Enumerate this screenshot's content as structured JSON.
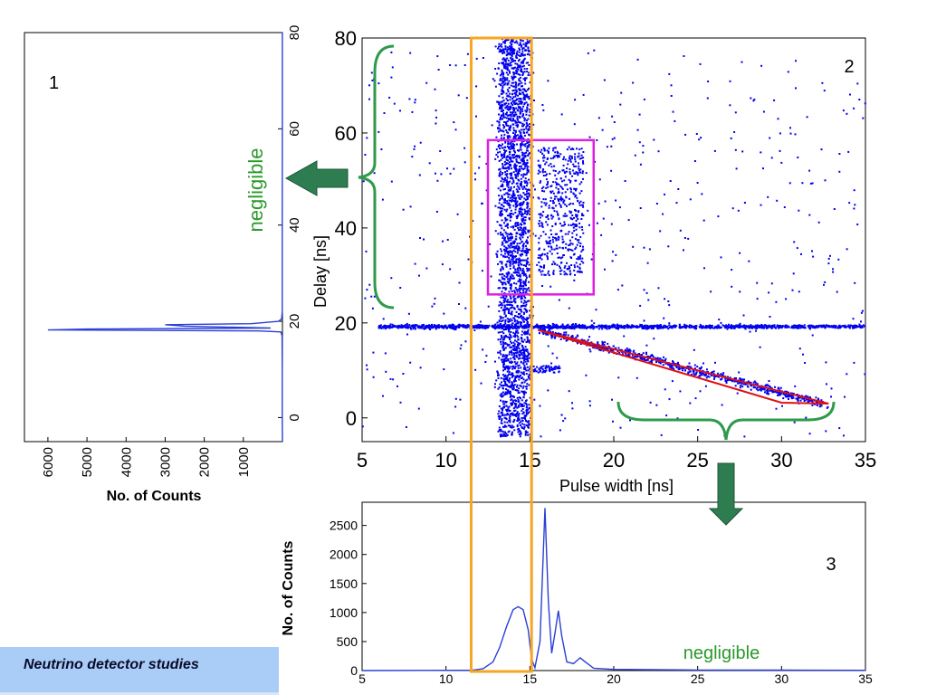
{
  "page": {
    "footer_title": "Neutrino detector studies",
    "colors": {
      "points": "#0000ee",
      "orange_box": "#f5a623",
      "magenta_box": "#e020e0",
      "red_band": "#e01010",
      "green_annotation": "#2e9a4a",
      "green_arrow": "#2e7d50",
      "negligible_text": "#2a9a2a"
    }
  },
  "chart_data": [
    {
      "id": "panel-1",
      "type": "line",
      "panel_label": "1",
      "orientation": "horizontal-histogram",
      "title": "",
      "xlabel": "No. of Counts",
      "ylabel": "",
      "x_reversed": true,
      "xlim": [
        0,
        6600
      ],
      "ylim": [
        -5,
        80
      ],
      "x_ticks": [
        "6000",
        "5000",
        "4000",
        "3000",
        "2000",
        "1000"
      ],
      "x_tick_values": [
        6000,
        5000,
        4000,
        3000,
        2000,
        1000
      ],
      "y_ticks": [
        "0",
        "20",
        "40",
        "60",
        "80"
      ],
      "y_tick_values": [
        0,
        20,
        40,
        60,
        80
      ],
      "series": [
        {
          "points": [
            [
              0,
              -5
            ],
            [
              5,
              0
            ],
            [
              5,
              10
            ],
            [
              10,
              17
            ],
            [
              40,
              17.8
            ],
            [
              600,
              18
            ],
            [
              6000,
              18.2
            ],
            [
              5000,
              18.4
            ],
            [
              300,
              18.6
            ],
            [
              2500,
              19
            ],
            [
              3000,
              19.3
            ],
            [
              800,
              19.5
            ],
            [
              100,
              20
            ],
            [
              20,
              20.5
            ],
            [
              5,
              22
            ],
            [
              5,
              40
            ],
            [
              3,
              60
            ],
            [
              3,
              80
            ]
          ]
        }
      ],
      "annotation": "negligible"
    },
    {
      "id": "panel-2",
      "type": "scatter",
      "panel_label": "2",
      "title": "",
      "xlabel": "Pulse width [ns]",
      "ylabel": "Delay [ns]",
      "xlim": [
        5,
        35
      ],
      "ylim": [
        -5,
        80
      ],
      "x_ticks": [
        "5",
        "10",
        "15",
        "20",
        "25",
        "30",
        "35"
      ],
      "x_tick_values": [
        5,
        10,
        15,
        20,
        25,
        30,
        35
      ],
      "y_ticks": [
        "0",
        "20",
        "40",
        "60",
        "80"
      ],
      "y_tick_values": [
        0,
        20,
        40,
        60,
        80
      ],
      "clusters": [
        {
          "name": "vertical band",
          "x_range": [
            13.2,
            15.0
          ],
          "y_range": [
            -4,
            80
          ],
          "approx_points": 2600
        },
        {
          "name": "horizontal band at delay 19 ns",
          "x_range": [
            6,
            35
          ],
          "y_center": 19.2,
          "y_spread": 0.4,
          "approx_points": 1400
        },
        {
          "name": "cluster near 16–18 ns",
          "x_range": [
            15.5,
            18.2
          ],
          "y_range": [
            30,
            57
          ],
          "approx_points": 500
        },
        {
          "name": "diagonal band",
          "from": [
            15.5,
            18.5
          ],
          "to": [
            32.5,
            3.0
          ],
          "approx_points": 700
        },
        {
          "name": "blob at delay 10 ns",
          "x_range": [
            15.2,
            16.8
          ],
          "y_range": [
            9.5,
            11
          ],
          "approx_points": 60
        },
        {
          "name": "sparse background",
          "x_range": [
            5,
            35
          ],
          "y_range": [
            -4,
            78
          ],
          "approx_points": 520
        }
      ],
      "overlays": {
        "orange_box_x": [
          11.5,
          15.1
        ],
        "orange_box_y_from": 80,
        "magenta_box": {
          "x": [
            12.5,
            18.8
          ],
          "y": [
            26,
            58.5
          ]
        },
        "red_triangle": [
          [
            15.5,
            18.5
          ],
          [
            32.8,
            3.0
          ],
          [
            30.0,
            3.2
          ]
        ]
      },
      "brace_annotations": [
        "negligible",
        "negligible"
      ]
    },
    {
      "id": "panel-3",
      "type": "line",
      "panel_label": "3",
      "title": "",
      "xlabel": "",
      "ylabel": "No. of Counts",
      "xlim": [
        5,
        35
      ],
      "ylim": [
        0,
        2900
      ],
      "x_ticks": [
        "5",
        "10",
        "15",
        "20",
        "25",
        "30",
        "35"
      ],
      "x_tick_values": [
        5,
        10,
        15,
        20,
        25,
        30,
        35
      ],
      "y_ticks": [
        "0",
        "500",
        "1000",
        "1500",
        "2000",
        "2500"
      ],
      "y_tick_values": [
        0,
        500,
        1000,
        1500,
        2000,
        2500
      ],
      "series": [
        {
          "points": [
            [
              5,
              0
            ],
            [
              11.5,
              5
            ],
            [
              12.2,
              30
            ],
            [
              12.8,
              150
            ],
            [
              13.2,
              400
            ],
            [
              13.6,
              750
            ],
            [
              14.0,
              1050
            ],
            [
              14.3,
              1100
            ],
            [
              14.6,
              1050
            ],
            [
              14.9,
              700
            ],
            [
              15.1,
              200
            ],
            [
              15.3,
              50
            ],
            [
              15.6,
              500
            ],
            [
              15.9,
              2800
            ],
            [
              16.1,
              1200
            ],
            [
              16.3,
              300
            ],
            [
              16.5,
              650
            ],
            [
              16.7,
              1030
            ],
            [
              16.9,
              600
            ],
            [
              17.2,
              150
            ],
            [
              17.6,
              120
            ],
            [
              18.0,
              220
            ],
            [
              18.3,
              150
            ],
            [
              18.8,
              40
            ],
            [
              20,
              20
            ],
            [
              22,
              15
            ],
            [
              25,
              10
            ],
            [
              30,
              8
            ],
            [
              35,
              5
            ]
          ]
        }
      ],
      "annotation": "negligible"
    }
  ]
}
